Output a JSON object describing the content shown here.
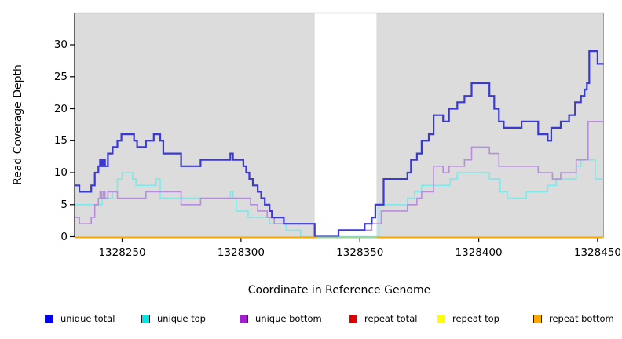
{
  "figure": {
    "xlabel": "Coordinate in Reference Genome",
    "ylabel": "Read Coverage Depth"
  },
  "legend": {
    "items": [
      {
        "label": "unique total",
        "color": "#0000EE"
      },
      {
        "label": "unique top",
        "color": "#00E5E5"
      },
      {
        "label": "unique bottom",
        "color": "#A020D0"
      },
      {
        "label": "repeat total",
        "color": "#DD0000"
      },
      {
        "label": "repeat top",
        "color": "#FFFF00"
      },
      {
        "label": "repeat bottom",
        "color": "#FFA500"
      }
    ]
  },
  "chart_data": {
    "type": "line",
    "subtype": "step-coverage",
    "title": "",
    "xlabel": "Coordinate in Reference Genome",
    "ylabel": "Read Coverage Depth",
    "xlim": [
      1328230,
      1328452.5
    ],
    "ylim": [
      0,
      35
    ],
    "x_ticks": [
      1328250,
      1328300,
      1328350,
      1328400,
      1328450
    ],
    "y_ticks": [
      0,
      5,
      10,
      15,
      20,
      25,
      30
    ],
    "grid": false,
    "legend_position": "bottom",
    "panel_color": "#DCDCDC",
    "panel_border_color": "#A0A0A0",
    "masked_region": {
      "start": 1328331,
      "end": 1328357
    },
    "masked_zero_line": {
      "color": "#9CD69C",
      "start": 1328332,
      "end": 1328357
    },
    "series": [
      {
        "name": "unique total",
        "legend_color": "#0000EE",
        "line_color": "#3A3AD2",
        "width": 2.2,
        "points": [
          [
            1328230,
            8
          ],
          [
            1328232,
            7
          ],
          [
            1328237,
            8
          ],
          [
            1328238.5,
            10
          ],
          [
            1328240,
            11
          ],
          [
            1328240.7,
            12
          ],
          [
            1328241.4,
            11
          ],
          [
            1328242.1,
            12
          ],
          [
            1328242.8,
            11
          ],
          [
            1328244,
            13
          ],
          [
            1328246,
            14
          ],
          [
            1328248,
            15
          ],
          [
            1328249.7,
            16
          ],
          [
            1328255,
            15
          ],
          [
            1328256.3,
            14
          ],
          [
            1328260,
            15
          ],
          [
            1328263.3,
            16
          ],
          [
            1328266,
            15
          ],
          [
            1328267.3,
            13
          ],
          [
            1328274.8,
            11
          ],
          [
            1328283,
            12
          ],
          [
            1328295.5,
            13
          ],
          [
            1328296.6,
            12
          ],
          [
            1328301,
            11
          ],
          [
            1328302.2,
            10
          ],
          [
            1328303.5,
            9
          ],
          [
            1328305,
            8
          ],
          [
            1328307,
            7
          ],
          [
            1328308.5,
            6
          ],
          [
            1328310,
            5
          ],
          [
            1328312,
            4
          ],
          [
            1328313,
            3
          ],
          [
            1328318,
            2
          ],
          [
            1328331,
            0
          ],
          [
            1328341,
            1
          ],
          [
            1328352,
            2
          ],
          [
            1328355,
            3
          ],
          [
            1328356.5,
            5
          ],
          [
            1328360,
            9
          ],
          [
            1328370,
            10
          ],
          [
            1328371.5,
            12
          ],
          [
            1328374,
            13
          ],
          [
            1328376,
            15
          ],
          [
            1328379,
            16
          ],
          [
            1328381,
            19
          ],
          [
            1328385,
            18
          ],
          [
            1328387.5,
            20
          ],
          [
            1328391,
            21
          ],
          [
            1328394,
            22
          ],
          [
            1328397,
            24
          ],
          [
            1328404.5,
            22
          ],
          [
            1328406.5,
            20
          ],
          [
            1328408.5,
            18
          ],
          [
            1328410.5,
            17
          ],
          [
            1328418,
            18
          ],
          [
            1328425,
            16
          ],
          [
            1328429,
            15
          ],
          [
            1328430.5,
            17
          ],
          [
            1328434.5,
            18
          ],
          [
            1328438,
            19
          ],
          [
            1328440.5,
            21
          ],
          [
            1328443,
            22
          ],
          [
            1328444.5,
            23
          ],
          [
            1328445.5,
            24
          ],
          [
            1328446.5,
            29
          ],
          [
            1328450,
            27
          ],
          [
            1328452.5,
            27
          ]
        ]
      },
      {
        "name": "unique top",
        "legend_color": "#00E5E5",
        "line_color": "#7FE8E8",
        "width": 1.6,
        "points": [
          [
            1328230,
            5
          ],
          [
            1328241.6,
            6
          ],
          [
            1328246,
            7
          ],
          [
            1328248,
            9
          ],
          [
            1328250,
            10
          ],
          [
            1328254.4,
            9
          ],
          [
            1328255.8,
            8
          ],
          [
            1328264.3,
            9
          ],
          [
            1328266,
            6
          ],
          [
            1328295.5,
            7
          ],
          [
            1328296.6,
            6
          ],
          [
            1328298,
            4
          ],
          [
            1328303,
            3
          ],
          [
            1328312,
            2
          ],
          [
            1328319,
            1
          ],
          [
            1328325,
            0
          ],
          [
            1328358,
            5
          ],
          [
            1328370,
            6
          ],
          [
            1328373,
            7
          ],
          [
            1328376,
            8
          ],
          [
            1328388,
            9
          ],
          [
            1328391,
            10
          ],
          [
            1328404.5,
            9
          ],
          [
            1328409,
            7
          ],
          [
            1328412,
            6
          ],
          [
            1328420,
            7
          ],
          [
            1328429,
            8
          ],
          [
            1328432.6,
            9
          ],
          [
            1328441,
            11
          ],
          [
            1328443,
            12
          ],
          [
            1328449,
            9
          ],
          [
            1328452.5,
            9
          ]
        ]
      },
      {
        "name": "unique bottom",
        "legend_color": "#A020D0",
        "line_color": "#B88CDE",
        "width": 1.6,
        "points": [
          [
            1328230,
            3
          ],
          [
            1328232,
            2
          ],
          [
            1328237,
            3
          ],
          [
            1328238.5,
            5
          ],
          [
            1328240,
            6
          ],
          [
            1328240.7,
            7
          ],
          [
            1328241.4,
            6
          ],
          [
            1328242.1,
            7
          ],
          [
            1328242.8,
            6
          ],
          [
            1328244,
            7
          ],
          [
            1328248,
            6
          ],
          [
            1328260,
            7
          ],
          [
            1328274.8,
            5
          ],
          [
            1328283,
            6
          ],
          [
            1328304,
            5
          ],
          [
            1328307,
            4
          ],
          [
            1328311,
            3
          ],
          [
            1328314,
            2
          ],
          [
            1328331,
            0
          ],
          [
            1328341,
            1
          ],
          [
            1328355,
            2
          ],
          [
            1328359,
            4
          ],
          [
            1328370,
            5
          ],
          [
            1328374,
            6
          ],
          [
            1328376,
            7
          ],
          [
            1328381,
            11
          ],
          [
            1328385,
            10
          ],
          [
            1328387.5,
            11
          ],
          [
            1328394,
            12
          ],
          [
            1328397,
            14
          ],
          [
            1328404.5,
            13
          ],
          [
            1328408.5,
            11
          ],
          [
            1328425,
            10
          ],
          [
            1328431,
            9
          ],
          [
            1328434.5,
            10
          ],
          [
            1328441,
            12
          ],
          [
            1328446,
            18
          ],
          [
            1328452.5,
            18
          ]
        ]
      },
      {
        "name": "repeat total",
        "legend_color": "#DD0000",
        "line_color": "#DD0000",
        "width": 1.6,
        "points": [
          [
            1328230,
            0
          ],
          [
            1328452.5,
            0
          ]
        ]
      },
      {
        "name": "repeat top",
        "legend_color": "#FFFF00",
        "line_color": "#FFFF00",
        "width": 1.6,
        "points": [
          [
            1328230,
            0
          ],
          [
            1328452.5,
            0
          ]
        ]
      },
      {
        "name": "repeat bottom",
        "legend_color": "#FFA500",
        "line_color": "#FFA500",
        "width": 2,
        "points": [
          [
            1328230,
            0
          ],
          [
            1328452.5,
            0
          ]
        ]
      }
    ]
  }
}
